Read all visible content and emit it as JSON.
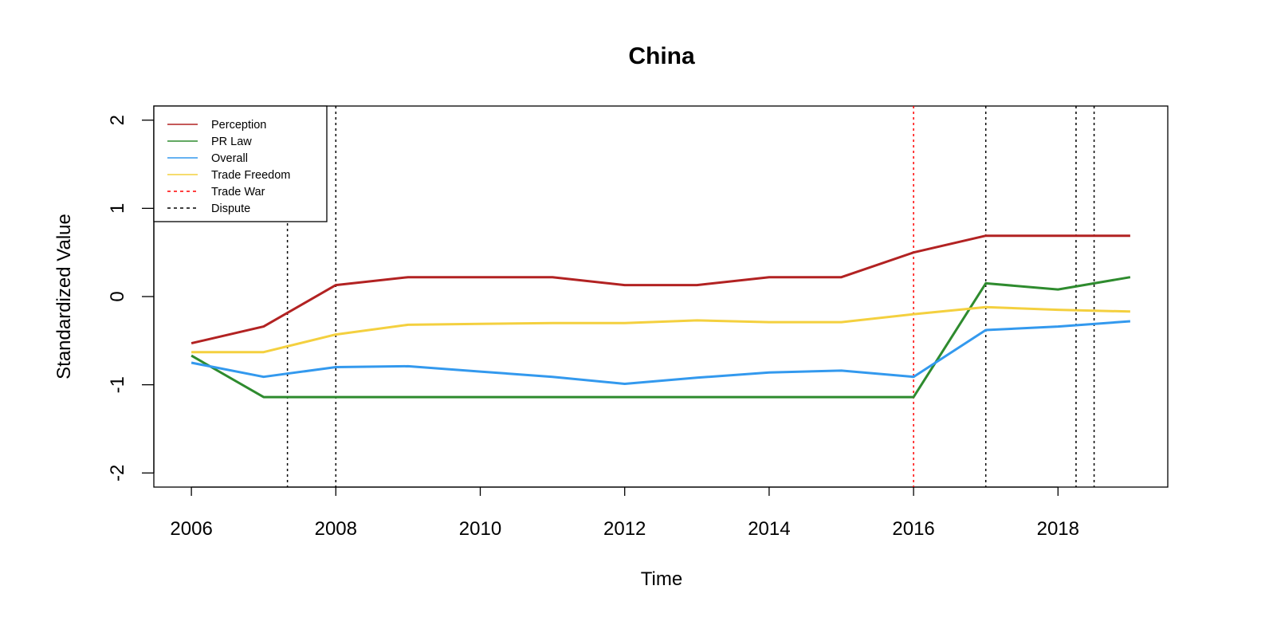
{
  "chart_data": {
    "type": "line",
    "title": "China",
    "xlabel": "Time",
    "ylabel": "Standardized Value",
    "xlim": [
      2005.48,
      2019.52
    ],
    "ylim": [
      -2.16,
      2.16
    ],
    "x_ticks": [
      2006,
      2008,
      2010,
      2012,
      2014,
      2016,
      2018
    ],
    "y_ticks": [
      -2,
      -1,
      0,
      1,
      2
    ],
    "x_tick_labels": [
      "2006",
      "2008",
      "2010",
      "2012",
      "2014",
      "2016",
      "2018"
    ],
    "y_tick_labels": [
      "-2",
      "-1",
      "0",
      "1",
      "2"
    ],
    "grid": false,
    "legend_position": "top-left",
    "x": [
      2006,
      2007,
      2008,
      2009,
      2010,
      2011,
      2012,
      2013,
      2014,
      2015,
      2016,
      2017,
      2018,
      2019
    ],
    "series": [
      {
        "name": "Perception",
        "color": "#b22222",
        "values": [
          -0.53,
          -0.34,
          0.13,
          0.22,
          0.22,
          0.22,
          0.13,
          0.13,
          0.22,
          0.22,
          0.5,
          0.69,
          0.69,
          0.69
        ]
      },
      {
        "name": "PR Law",
        "color": "#2e8b2e",
        "values": [
          -0.67,
          -1.14,
          -1.14,
          -1.14,
          -1.14,
          -1.14,
          -1.14,
          -1.14,
          -1.14,
          -1.14,
          -1.14,
          0.15,
          0.08,
          0.22
        ]
      },
      {
        "name": "Overall",
        "color": "#3399ee",
        "values": [
          -0.75,
          -0.91,
          -0.8,
          -0.79,
          -0.85,
          -0.91,
          -0.99,
          -0.92,
          -0.86,
          -0.84,
          -0.91,
          -0.38,
          -0.34,
          -0.28
        ]
      },
      {
        "name": "Trade Freedom",
        "color": "#f4d03f",
        "values": [
          -0.63,
          -0.63,
          -0.43,
          -0.32,
          -0.31,
          -0.3,
          -0.3,
          -0.27,
          -0.29,
          -0.29,
          -0.2,
          -0.12,
          -0.15,
          -0.17
        ]
      }
    ],
    "vlines": [
      {
        "name": "Trade War",
        "color": "#ff0000",
        "x": [
          2016
        ]
      },
      {
        "name": "Dispute",
        "color": "#000000",
        "x": [
          2007.33,
          2008.0,
          2017.0,
          2018.25,
          2018.5
        ]
      }
    ]
  }
}
